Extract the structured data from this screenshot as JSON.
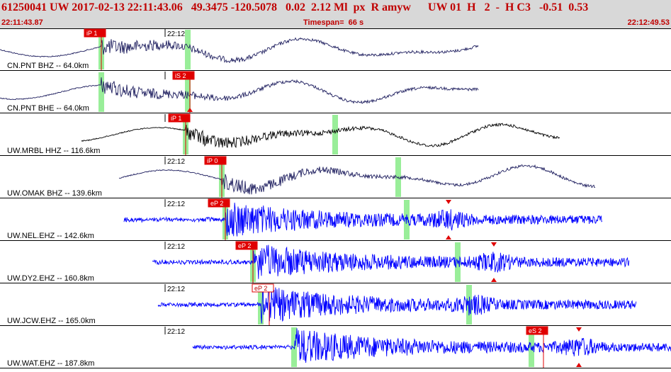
{
  "header": {
    "title": "61250041 UW 2017-02-13 22:11:43.06   49.3475 -120.5078   0.02  2.12 Ml  px  R amyw      UW 01  H   2  -  H C3   -0.51  0.53",
    "start_time": "22:11:43.87",
    "timespan": "Timespan=  66 s",
    "end_time": "22:12:49.53"
  },
  "colors": {
    "header_bg": "#d8d8d8",
    "title": "#c00000",
    "pick_box": "#e00000",
    "highlight": "#99ee99",
    "trace_dark": "#202060",
    "trace_black": "#000000",
    "trace_blue": "#0000ff"
  },
  "traces": [
    {
      "label": "CN.PNT BHZ -- 64.0km",
      "minute_label": "22:12",
      "color": "#202060",
      "span": [
        0,
        675
      ],
      "kind": "smooth",
      "greens": [
        143,
        265
      ],
      "picks": [
        {
          "text": "iP 1",
          "x": 143,
          "style": "fill"
        }
      ],
      "triangles": []
    },
    {
      "label": "CN.PNT BHE -- 64.0km",
      "minute_label": "",
      "color": "#202060",
      "span": [
        0,
        675
      ],
      "kind": "smooth",
      "greens": [
        143,
        265
      ],
      "picks": [
        {
          "text": "iS 2",
          "x": 268,
          "style": "fill"
        }
      ],
      "triangles": [
        268
      ]
    },
    {
      "label": "UW.MRBL HHZ -- 116.6km",
      "minute_label": "",
      "color": "#000000",
      "span": [
        115,
        790
      ],
      "kind": "smooth",
      "greens": [
        262,
        473
      ],
      "picks": [
        {
          "text": "iP 1",
          "x": 262,
          "style": "fill"
        }
      ],
      "triangles": []
    },
    {
      "label": "UW.OMAK BHZ -- 139.6km",
      "minute_label": "22:12",
      "color": "#202060",
      "span": [
        168,
        840
      ],
      "kind": "smooth",
      "greens": [
        313,
        562
      ],
      "picks": [
        {
          "text": "iP 0",
          "x": 313,
          "style": "fill"
        }
      ],
      "triangles": []
    },
    {
      "label": "UW.NEL.EHZ -- 142.6km",
      "minute_label": "22:12",
      "color": "#0000ff",
      "span": [
        175,
        850
      ],
      "kind": "noisy",
      "greens": [
        318,
        574
      ],
      "picks": [
        {
          "text": "eP 2",
          "x": 318,
          "style": "fill"
        }
      ],
      "triangles": [
        633
      ]
    },
    {
      "label": "UW.DY2.EHZ -- 160.8km",
      "minute_label": "22:12",
      "color": "#0000ff",
      "span": [
        215,
        888
      ],
      "kind": "noisy",
      "greens": [
        357,
        646
      ],
      "picks": [
        {
          "text": "eP 2",
          "x": 357,
          "style": "fill"
        }
      ],
      "triangles": [
        697
      ]
    },
    {
      "label": "UW.JCW.EHZ -- 165.0km",
      "minute_label": "22:12",
      "color": "#0000ff",
      "span": [
        223,
        898
      ],
      "kind": "noisy",
      "greens": [
        368,
        662
      ],
      "picks": [
        {
          "text": "eP 2",
          "x": 380,
          "style": "outline"
        }
      ],
      "triangles": []
    },
    {
      "label": "UW.WAT.EHZ -- 187.8km",
      "minute_label": "22:12",
      "color": "#0000ff",
      "span": [
        272,
        947
      ],
      "kind": "noisy",
      "greens": [
        415,
        750
      ],
      "picks": [
        {
          "text": "eS 2",
          "x": 767,
          "style": "fill"
        }
      ],
      "triangles": [
        817
      ]
    }
  ]
}
